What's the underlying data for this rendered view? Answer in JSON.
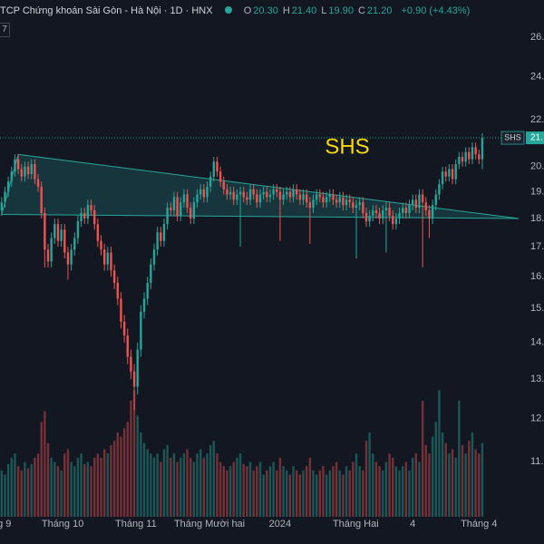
{
  "chart_data": {
    "type": "candlestick",
    "header": {
      "title": "TCP Chứng khoán Sài Gòn - Hà Nội · 1D · HNX",
      "ohlc": [
        {
          "label": "O",
          "value": "20.30"
        },
        {
          "label": "H",
          "value": "21.40"
        },
        {
          "label": "L",
          "value": "19.90"
        },
        {
          "label": "C",
          "value": "21.20"
        }
      ],
      "change": "+0.90 (+4.43%)",
      "badge": "7"
    },
    "annotation": "SHS",
    "price_tag": {
      "symbol": "SHS",
      "label": "21."
    },
    "log_scale": true,
    "grid": false,
    "up_color": "#26a69a",
    "down_color": "#ef5350",
    "ylim": [
      9.83,
      28.04
    ],
    "yticks": [
      {
        "value": 26,
        "label": "26."
      },
      {
        "value": 24,
        "label": "24."
      },
      {
        "value": 22,
        "label": "22."
      },
      {
        "value": 20,
        "label": "20."
      },
      {
        "value": 19,
        "label": "19."
      },
      {
        "value": 18,
        "label": "18."
      },
      {
        "value": 17,
        "label": "17."
      },
      {
        "value": 16,
        "label": "16."
      },
      {
        "value": 15,
        "label": "15."
      },
      {
        "value": 14,
        "label": "14."
      },
      {
        "value": 13,
        "label": "13."
      },
      {
        "value": 12,
        "label": "12."
      },
      {
        "value": 11,
        "label": "11."
      }
    ],
    "xlim": [
      -0.5,
      157.6
    ],
    "xticks": [
      {
        "value": 0.8,
        "label": "g 9"
      },
      {
        "value": 18.4,
        "label": "Tháng 10"
      },
      {
        "value": 40.5,
        "label": "Tháng 11"
      },
      {
        "value": 62.7,
        "label": "Tháng Mười hai"
      },
      {
        "value": 84,
        "label": "2024"
      },
      {
        "value": 106.8,
        "label": "Tháng Hai"
      },
      {
        "value": 124,
        "label": "4"
      },
      {
        "value": 144,
        "label": "Tháng 4"
      }
    ],
    "vlim": [
      0,
      245
    ],
    "pattern": [
      [
        0,
        18.15
      ],
      [
        5,
        20.5
      ],
      [
        156,
        18.0
      ]
    ],
    "open": [
      18.3,
      18.6,
      19.0,
      19.4,
      19.8,
      20.3,
      19.9,
      19.6,
      20.0,
      19.7,
      20.1,
      19.5,
      19.2,
      18.2,
      16.9,
      16.5,
      17.3,
      17.8,
      17.2,
      17.6,
      16.8,
      16.4,
      16.9,
      17.3,
      17.9,
      18.2,
      18.0,
      18.5,
      18.3,
      17.8,
      17.2,
      16.9,
      16.4,
      16.8,
      16.2,
      15.8,
      15.3,
      14.6,
      14.2,
      13.6,
      13.2,
      12.8,
      13.8,
      14.9,
      15.3,
      15.8,
      16.4,
      16.9,
      17.5,
      17.2,
      17.8,
      18.4,
      18.3,
      18.8,
      18.1,
      18.6,
      18.9,
      18.4,
      18.0,
      18.6,
      18.9,
      19.1,
      18.8,
      19.2,
      19.6,
      20.2,
      19.8,
      19.4,
      19.1,
      18.9,
      19.0,
      18.7,
      18.9,
      19.0,
      18.8,
      18.7,
      19.1,
      18.9,
      18.6,
      18.9,
      19.0,
      18.8,
      18.9,
      19.1,
      19.0,
      18.7,
      18.9,
      19.0,
      18.8,
      19.1,
      18.9,
      18.7,
      18.9,
      18.6,
      18.4,
      18.7,
      18.9,
      18.8,
      18.6,
      18.8,
      18.9,
      18.7,
      18.6,
      18.8,
      18.5,
      18.7,
      18.6,
      18.4,
      18.5,
      18.6,
      18.2,
      17.9,
      18.1,
      18.3,
      18.2,
      18.0,
      18.3,
      18.4,
      18.1,
      17.8,
      18.0,
      18.2,
      18.4,
      18.2,
      18.5,
      18.7,
      18.4,
      18.9,
      18.6,
      18.3,
      18.0,
      18.5,
      18.9,
      19.3,
      19.8,
      19.6,
      19.9,
      19.5,
      20.1,
      20.4,
      20.2,
      20.6,
      20.3,
      20.8,
      20.5,
      20.3
    ],
    "high": [
      18.8,
      19.2,
      19.6,
      20.0,
      20.5,
      20.5,
      20.1,
      20.2,
      20.2,
      20.3,
      20.3,
      19.7,
      19.4,
      18.4,
      17.1,
      17.5,
      18.0,
      18.0,
      17.8,
      17.8,
      17.0,
      17.1,
      17.5,
      18.1,
      18.4,
      18.4,
      18.7,
      18.7,
      18.5,
      18.0,
      17.4,
      17.1,
      17.0,
      17.0,
      16.4,
      16.0,
      15.5,
      14.8,
      14.4,
      13.8,
      13.4,
      14.0,
      15.1,
      15.5,
      16.0,
      16.6,
      17.1,
      17.7,
      17.7,
      18.0,
      18.6,
      18.6,
      19.0,
      19.0,
      18.8,
      19.1,
      19.1,
      18.6,
      18.8,
      19.1,
      19.3,
      19.3,
      19.4,
      19.8,
      20.4,
      20.4,
      20.0,
      19.6,
      19.3,
      19.2,
      19.2,
      19.1,
      19.2,
      19.2,
      19.0,
      19.3,
      19.3,
      19.1,
      19.1,
      19.2,
      19.2,
      19.1,
      19.3,
      19.3,
      19.2,
      19.1,
      19.2,
      19.2,
      19.3,
      19.3,
      19.1,
      19.1,
      19.1,
      18.8,
      18.9,
      19.1,
      19.1,
      19.0,
      19.0,
      19.1,
      19.1,
      18.9,
      19.0,
      19.0,
      18.9,
      18.9,
      18.8,
      18.7,
      18.8,
      18.8,
      18.4,
      18.3,
      18.5,
      18.5,
      18.4,
      18.5,
      18.6,
      18.6,
      18.3,
      18.2,
      18.4,
      18.6,
      18.6,
      18.7,
      18.9,
      18.9,
      19.1,
      19.1,
      18.8,
      18.5,
      18.7,
      19.1,
      19.5,
      20.0,
      20.0,
      20.1,
      20.1,
      20.3,
      20.6,
      20.6,
      20.8,
      20.8,
      21.0,
      21.0,
      20.7,
      21.4
    ],
    "low": [
      18.1,
      18.4,
      18.8,
      19.2,
      19.6,
      19.7,
      19.4,
      19.4,
      19.5,
      19.5,
      19.3,
      19.0,
      18.0,
      16.3,
      16.3,
      16.3,
      17.1,
      17.0,
      17.0,
      16.6,
      15.9,
      16.2,
      16.7,
      17.1,
      17.7,
      17.8,
      17.8,
      18.1,
      17.6,
      17.0,
      16.7,
      16.2,
      16.2,
      16.0,
      15.6,
      15.1,
      14.4,
      14.0,
      13.4,
      13.0,
      12.2,
      12.6,
      13.6,
      14.7,
      15.1,
      15.6,
      16.2,
      16.7,
      17.0,
      17.0,
      17.6,
      18.1,
      18.1,
      17.9,
      17.9,
      18.4,
      18.2,
      17.8,
      17.8,
      18.4,
      18.7,
      18.6,
      18.6,
      19.0,
      19.4,
      19.6,
      19.2,
      18.9,
      18.7,
      18.7,
      18.5,
      18.5,
      17.0,
      18.6,
      18.5,
      18.5,
      18.7,
      18.4,
      18.4,
      18.7,
      18.6,
      18.6,
      18.7,
      18.8,
      17.2,
      18.5,
      18.7,
      18.6,
      18.6,
      18.7,
      18.5,
      18.5,
      18.4,
      17.1,
      18.2,
      18.5,
      18.6,
      18.4,
      18.4,
      18.6,
      18.5,
      18.4,
      18.4,
      18.3,
      18.3,
      18.4,
      18.2,
      16.6,
      18.3,
      18.0,
      17.7,
      17.7,
      17.9,
      18.0,
      17.8,
      17.8,
      16.8,
      17.9,
      17.6,
      17.6,
      17.8,
      18.0,
      18.0,
      18.0,
      18.3,
      18.2,
      18.2,
      16.3,
      18.1,
      17.3,
      17.8,
      18.3,
      18.7,
      19.1,
      19.4,
      19.4,
      19.3,
      19.3,
      19.9,
      20.0,
      20.0,
      20.1,
      20.1,
      20.3,
      20.1,
      19.9
    ],
    "close": [
      18.6,
      19.0,
      19.4,
      19.8,
      20.3,
      19.9,
      19.6,
      20.0,
      19.7,
      20.1,
      19.5,
      19.2,
      18.2,
      16.9,
      16.5,
      17.3,
      17.8,
      17.2,
      17.6,
      16.8,
      16.4,
      16.9,
      17.3,
      17.9,
      18.2,
      18.0,
      18.5,
      18.3,
      17.8,
      17.2,
      16.9,
      16.4,
      16.8,
      16.2,
      15.8,
      15.3,
      14.6,
      14.2,
      13.6,
      13.2,
      12.8,
      13.8,
      14.9,
      15.3,
      15.8,
      16.4,
      16.9,
      17.5,
      17.2,
      17.8,
      18.4,
      18.3,
      18.8,
      18.1,
      18.6,
      18.9,
      18.4,
      18.0,
      18.6,
      18.9,
      19.1,
      18.8,
      19.2,
      19.6,
      20.2,
      19.8,
      19.4,
      19.1,
      18.9,
      19.0,
      18.7,
      18.9,
      19.0,
      18.8,
      18.7,
      19.1,
      18.9,
      18.6,
      18.9,
      19.0,
      18.8,
      18.9,
      19.1,
      19.0,
      18.7,
      18.9,
      19.0,
      18.8,
      19.1,
      18.9,
      18.7,
      18.9,
      18.6,
      18.4,
      18.7,
      18.9,
      18.8,
      18.6,
      18.8,
      18.9,
      18.7,
      18.6,
      18.8,
      18.5,
      18.7,
      18.6,
      18.4,
      18.5,
      18.6,
      18.2,
      17.9,
      18.1,
      18.3,
      18.2,
      18.0,
      18.3,
      18.4,
      18.1,
      17.8,
      18.0,
      18.2,
      18.4,
      18.2,
      18.5,
      18.7,
      18.4,
      18.9,
      18.6,
      18.3,
      18.0,
      18.5,
      18.9,
      19.3,
      19.8,
      19.6,
      19.9,
      19.5,
      20.1,
      20.4,
      20.2,
      20.6,
      20.3,
      20.8,
      20.5,
      20.3,
      21.2
    ],
    "volume": [
      22,
      20,
      25,
      28,
      30,
      24,
      22,
      26,
      23,
      25,
      28,
      30,
      45,
      50,
      35,
      28,
      26,
      24,
      22,
      30,
      32,
      26,
      24,
      28,
      30,
      25,
      26,
      24,
      28,
      30,
      28,
      32,
      30,
      34,
      36,
      40,
      38,
      42,
      45,
      55,
      60,
      48,
      40,
      35,
      32,
      30,
      28,
      30,
      26,
      32,
      34,
      28,
      30,
      26,
      28,
      30,
      32,
      28,
      26,
      30,
      32,
      28,
      30,
      34,
      36,
      30,
      26,
      24,
      22,
      24,
      26,
      28,
      30,
      25,
      24,
      26,
      22,
      24,
      26,
      20,
      22,
      24,
      26,
      22,
      28,
      24,
      22,
      20,
      24,
      22,
      20,
      22,
      24,
      28,
      22,
      20,
      22,
      24,
      20,
      22,
      24,
      26,
      22,
      20,
      24,
      22,
      26,
      30,
      24,
      22,
      36,
      40,
      30,
      26,
      24,
      22,
      26,
      30,
      28,
      24,
      22,
      24,
      26,
      22,
      28,
      30,
      26,
      55,
      34,
      30,
      38,
      45,
      60,
      40,
      35,
      30,
      32,
      28,
      55,
      34,
      30,
      36,
      40,
      32,
      30,
      35
    ]
  }
}
